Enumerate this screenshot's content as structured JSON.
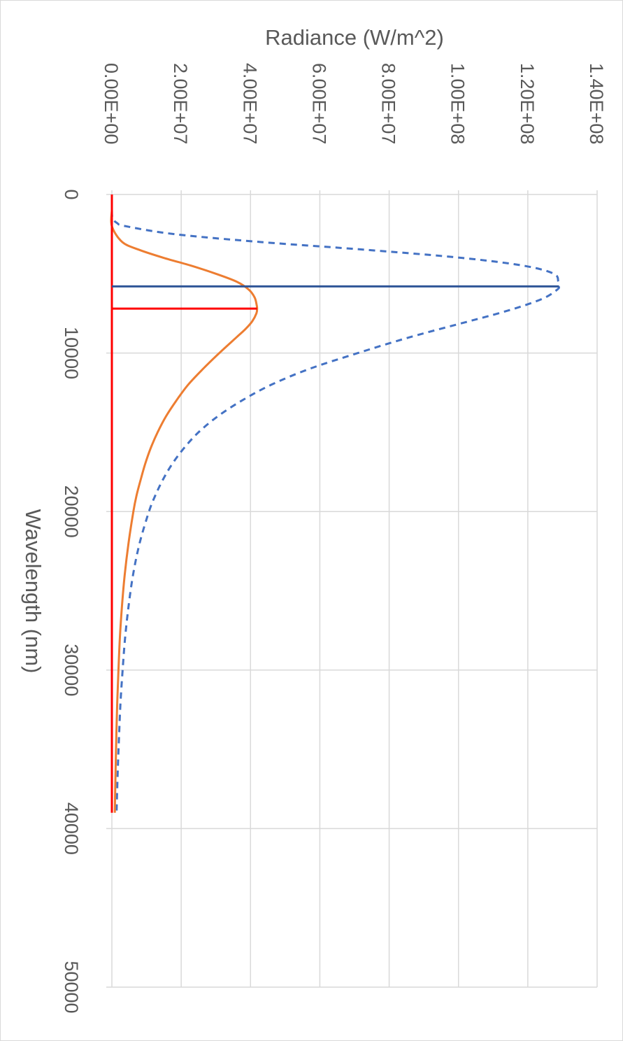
{
  "chart_data": {
    "type": "line",
    "orientation": "rotated-90-clockwise",
    "xlabel": "Wavelength (nm)",
    "ylabel": "Radiance (W/m^2)",
    "xlim": [
      0,
      50000
    ],
    "ylim": [
      0,
      140000000
    ],
    "x_ticks": [
      0,
      10000,
      20000,
      30000,
      40000,
      50000
    ],
    "x_tick_labels": [
      "0",
      "10000",
      "20000",
      "30000",
      "40000",
      "50000"
    ],
    "y_ticks": [
      0,
      20000000,
      40000000,
      60000000,
      80000000,
      100000000,
      120000000,
      140000000
    ],
    "y_tick_labels": [
      "0.00E+00",
      "2.00E+07",
      "4.00E+07",
      "6.00E+07",
      "8.00E+07",
      "1.00E+08",
      "1.20E+08",
      "1.40E+08"
    ],
    "grid": true,
    "legend": "none",
    "series": [
      {
        "color": "#4472c4",
        "style": "dashed",
        "x": [
          1000,
          1500,
          1800,
          2000,
          2500,
          3000,
          3500,
          4000,
          4500,
          5000,
          5500,
          5800,
          6000,
          6500,
          7000,
          7500,
          8000,
          9000,
          10000,
          11000,
          12000,
          13000,
          14000,
          15000,
          16000,
          17000,
          18000,
          19000,
          20000,
          22000,
          24000,
          26000,
          28000,
          30000,
          32000,
          34000,
          36000,
          38000,
          39000
        ],
        "y": [
          0,
          200000,
          1500000,
          4000000,
          18000000,
          43000000,
          74000000,
          101000000,
          119000000,
          127500000,
          128800000,
          129000000,
          128500000,
          125000000,
          119000000,
          111500000,
          103000000,
          86000000,
          71000000,
          57000000,
          46000000,
          37500000,
          30500000,
          25000000,
          20800000,
          17400000,
          14700000,
          12500000,
          10700000,
          8000000,
          6100000,
          4800000,
          3800000,
          3100000,
          2500000,
          2100000,
          1750000,
          1470000,
          1350000
        ]
      },
      {
        "color": "#ed7d31",
        "style": "solid",
        "x": [
          1000,
          2000,
          3000,
          3500,
          4000,
          4500,
          5000,
          5500,
          6000,
          6500,
          7000,
          7200,
          7500,
          8000,
          8500,
          9000,
          10000,
          11000,
          12000,
          13000,
          14000,
          15000,
          16000,
          17000,
          18000,
          19000,
          20000,
          22000,
          24000,
          26000,
          28000,
          30000,
          32000,
          34000,
          36000,
          38000,
          39000
        ],
        "y": [
          0,
          0,
          3000000,
          8000000,
          15000000,
          23000000,
          30000000,
          36000000,
          39500000,
          41200000,
          41800000,
          41900000,
          41700000,
          40500000,
          38500000,
          36000000,
          31000000,
          26300000,
          22000000,
          18600000,
          15600000,
          13200000,
          11200000,
          9600000,
          8300000,
          7100000,
          6200000,
          4800000,
          3700000,
          2900000,
          2300000,
          1900000,
          1550000,
          1300000,
          1100000,
          920000,
          850000
        ]
      },
      {
        "color": "#ff0000",
        "style": "solid",
        "x": [
          0,
          39000
        ],
        "y": [
          0,
          0
        ]
      }
    ],
    "vertical_markers": [
      {
        "color": "#2f5597",
        "x": 5800,
        "y_from": 0,
        "y_to": 129000000
      },
      {
        "color": "#ff0000",
        "x": 7200,
        "y_from": 0,
        "y_to": 41900000
      }
    ]
  }
}
